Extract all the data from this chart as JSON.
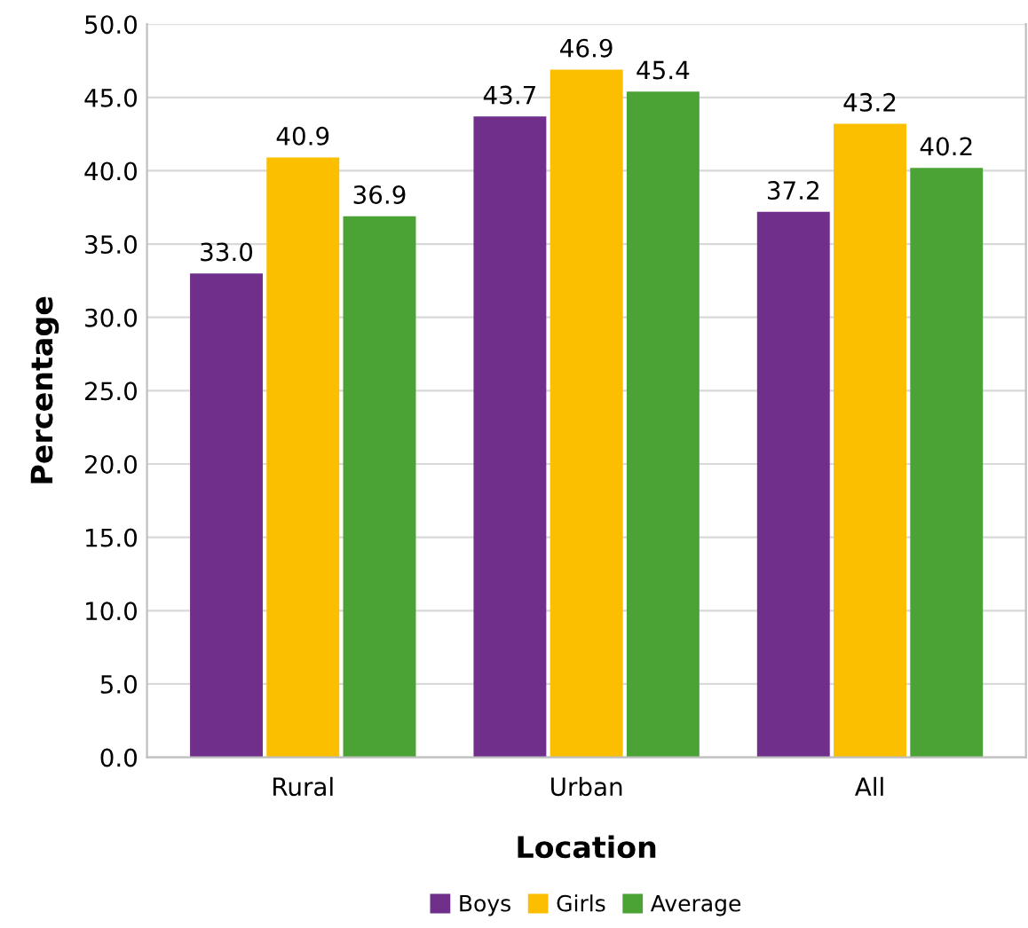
{
  "chart_data": {
    "type": "bar",
    "xlabel": "Location",
    "ylabel": "Percentage",
    "categories": [
      "Rural",
      "Urban",
      "All"
    ],
    "series": [
      {
        "name": "Boys",
        "color": "#6f2f8a",
        "values": [
          33.0,
          43.7,
          37.2
        ],
        "value_labels": [
          "33.0",
          "43.7",
          "37.2"
        ]
      },
      {
        "name": "Girls",
        "color": "#fbbf00",
        "values": [
          40.9,
          46.9,
          43.2
        ],
        "value_labels": [
          "40.9",
          "46.9",
          "43.2"
        ]
      },
      {
        "name": "Average",
        "color": "#4ba335",
        "values": [
          36.9,
          45.4,
          40.2
        ],
        "value_labels": [
          "36.9",
          "45.4",
          "40.2"
        ]
      }
    ],
    "ylim": [
      0,
      50
    ],
    "yticks": [
      {
        "value": 0,
        "label": "0.0"
      },
      {
        "value": 5,
        "label": "5.0"
      },
      {
        "value": 10,
        "label": "10.0"
      },
      {
        "value": 15,
        "label": "15.0"
      },
      {
        "value": 20,
        "label": "20.0"
      },
      {
        "value": 25,
        "label": "25.0"
      },
      {
        "value": 30,
        "label": "30.0"
      },
      {
        "value": 35,
        "label": "35.0"
      },
      {
        "value": 40,
        "label": "40.0"
      },
      {
        "value": 45,
        "label": "45.0"
      },
      {
        "value": 50,
        "label": "50.0"
      }
    ],
    "grid": "y",
    "legend": "bottom"
  }
}
